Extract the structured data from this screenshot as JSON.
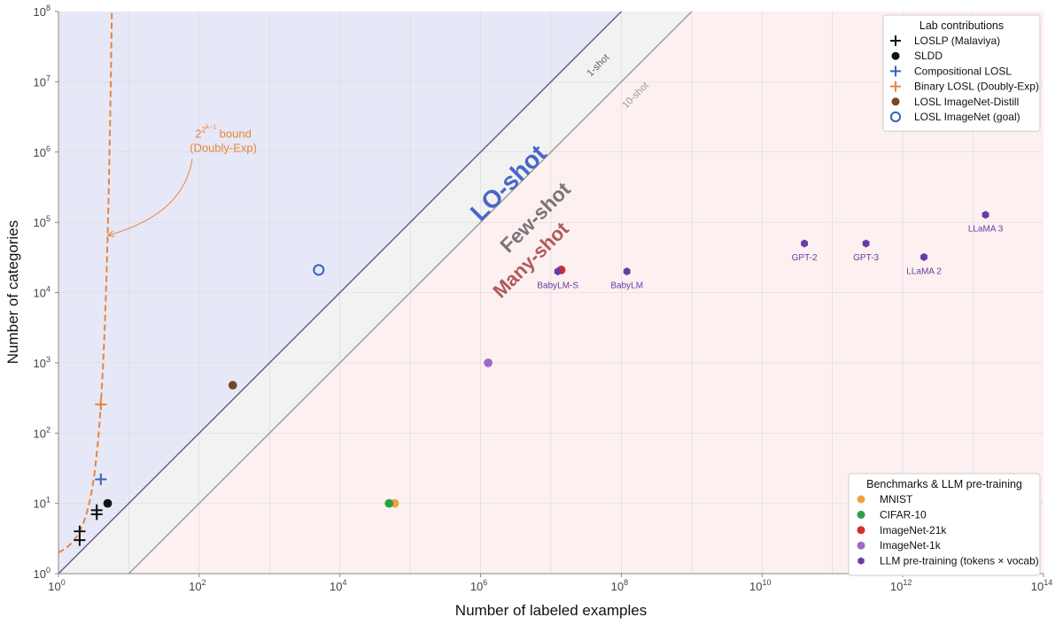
{
  "chart_data": {
    "type": "scatter",
    "xlabel": "Number of labeled examples",
    "ylabel": "Number of categories",
    "xscale": "log",
    "yscale": "log",
    "xlim": [
      1,
      100000000000000
    ],
    "ylim": [
      1,
      100000000
    ],
    "x_ticks": [
      {
        "value": 1,
        "base": "10",
        "exp": "0"
      },
      {
        "value": 100,
        "base": "10",
        "exp": "2"
      },
      {
        "value": 10000,
        "base": "10",
        "exp": "4"
      },
      {
        "value": 1000000,
        "base": "10",
        "exp": "6"
      },
      {
        "value": 100000000,
        "base": "10",
        "exp": "8"
      },
      {
        "value": 10000000000,
        "base": "10",
        "exp": "10"
      },
      {
        "value": 1000000000000,
        "base": "10",
        "exp": "12"
      },
      {
        "value": 100000000000000,
        "base": "10",
        "exp": "14"
      }
    ],
    "y_ticks": [
      {
        "value": 1,
        "base": "10",
        "exp": "0"
      },
      {
        "value": 10,
        "base": "10",
        "exp": "1"
      },
      {
        "value": 100,
        "base": "10",
        "exp": "2"
      },
      {
        "value": 1000,
        "base": "10",
        "exp": "3"
      },
      {
        "value": 10000,
        "base": "10",
        "exp": "4"
      },
      {
        "value": 100000,
        "base": "10",
        "exp": "5"
      },
      {
        "value": 1000000,
        "base": "10",
        "exp": "6"
      },
      {
        "value": 10000000,
        "base": "10",
        "exp": "7"
      },
      {
        "value": 100000000,
        "base": "10",
        "exp": "8"
      }
    ],
    "grid": true,
    "regions": [
      {
        "label": "LO-shot",
        "color": "#4a66c9",
        "fill": "#e6e8f7",
        "label_x": 3000000,
        "label_y": 300000
      },
      {
        "label": "Few-shot",
        "color": "#777777",
        "fill": "#f2f2f2",
        "label_x": 7000000,
        "label_y": 100000
      },
      {
        "label": "Many-shot",
        "color": "#b05a5a",
        "fill": "#fcf0f1",
        "label_x": 6000000,
        "label_y": 25000
      }
    ],
    "reference_lines": [
      {
        "label": "1-shot",
        "ratio": 1,
        "color": "#5a5f73",
        "label_x": 50000000,
        "label_y": 16000000
      },
      {
        "label": "10-shot",
        "ratio": 0.1,
        "color": "#999999",
        "label_x": 170000000,
        "label_y": 6000000
      }
    ],
    "bound_curve": {
      "label_base": "2",
      "label_exp": "2",
      "label_sup": "k−1",
      "label_line1": " bound",
      "label_line2": "(Doubly-Exp)",
      "color": "#e8843a",
      "label_x": 220,
      "label_y": 1200000,
      "arrow_to_x": 5,
      "arrow_to_y": 65000
    },
    "legends": [
      {
        "title": "Lab contributions",
        "position": "top-right",
        "entries": [
          {
            "label": "LOSLP (Malaviya)",
            "marker": "plus",
            "color": "#111111"
          },
          {
            "label": "SLDD",
            "marker": "circle",
            "color": "#111111"
          },
          {
            "label": "Compositional LOSL",
            "marker": "plus",
            "color": "#3b5fc0"
          },
          {
            "label": "Binary LOSL (Doubly-Exp)",
            "marker": "plus",
            "color": "#e8843a"
          },
          {
            "label": "LOSL ImageNet-Distill",
            "marker": "circle",
            "color": "#7a4520"
          },
          {
            "label": "LOSL ImageNet (goal)",
            "marker": "open-circle",
            "color": "#3b5fc0"
          }
        ]
      },
      {
        "title": "Benchmarks & LLM pre-training",
        "position": "bottom-right",
        "entries": [
          {
            "label": "MNIST",
            "marker": "circle",
            "color": "#f5a03a"
          },
          {
            "label": "CIFAR-10",
            "marker": "circle",
            "color": "#2ea043"
          },
          {
            "label": "ImageNet-21k",
            "marker": "circle",
            "color": "#d62e2e"
          },
          {
            "label": "ImageNet-1k",
            "marker": "circle",
            "color": "#9b6cc7"
          },
          {
            "label": "LLM pre-training (tokens × vocab)",
            "marker": "hexagon",
            "color": "#6a3aa8"
          }
        ]
      }
    ],
    "series": [
      {
        "legend": "LOSLP (Malaviya)",
        "marker": "plus",
        "color": "#111111",
        "points": [
          {
            "x": 2,
            "y": 3
          },
          {
            "x": 2,
            "y": 4
          },
          {
            "x": 3.5,
            "y": 7
          },
          {
            "x": 3.5,
            "y": 8
          }
        ]
      },
      {
        "legend": "SLDD",
        "marker": "circle",
        "color": "#111111",
        "points": [
          {
            "x": 5,
            "y": 10
          }
        ]
      },
      {
        "legend": "Compositional LOSL",
        "marker": "plus",
        "color": "#3b5fc0",
        "points": [
          {
            "x": 4,
            "y": 22
          }
        ]
      },
      {
        "legend": "Binary LOSL (Doubly-Exp)",
        "marker": "plus",
        "color": "#e8843a",
        "points": [
          {
            "x": 4,
            "y": 256
          }
        ]
      },
      {
        "legend": "LOSL ImageNet-Distill",
        "marker": "circle",
        "color": "#7a4520",
        "points": [
          {
            "x": 300,
            "y": 480
          }
        ]
      },
      {
        "legend": "LOSL ImageNet (goal)",
        "marker": "open-circle",
        "color": "#3b5fc0",
        "points": [
          {
            "x": 5000,
            "y": 21000
          }
        ]
      },
      {
        "legend": "MNIST",
        "marker": "circle",
        "color": "#f5a03a",
        "points": [
          {
            "x": 60000,
            "y": 10
          }
        ]
      },
      {
        "legend": "CIFAR-10",
        "marker": "circle",
        "color": "#2ea043",
        "points": [
          {
            "x": 50000,
            "y": 10
          }
        ]
      },
      {
        "legend": "ImageNet-21k",
        "marker": "circle",
        "color": "#d62e2e",
        "points": [
          {
            "x": 14000000,
            "y": 21000
          }
        ]
      },
      {
        "legend": "ImageNet-1k",
        "marker": "circle",
        "color": "#9b6cc7",
        "points": [
          {
            "x": 1280000,
            "y": 1000
          }
        ]
      },
      {
        "legend": "LLM pre-training (tokens × vocab)",
        "marker": "hexagon",
        "color": "#6a3aa8",
        "points": [
          {
            "x": 12500000,
            "y": 20000,
            "label": "BabyLM-S"
          },
          {
            "x": 120000000,
            "y": 20000,
            "label": "BabyLM"
          },
          {
            "x": 40000000000,
            "y": 50000,
            "label": "GPT-2"
          },
          {
            "x": 300000000000,
            "y": 50000,
            "label": "GPT-3"
          },
          {
            "x": 2000000000000,
            "y": 32000,
            "label": "LLaMA 2"
          },
          {
            "x": 15000000000000,
            "y": 128000,
            "label": "LLaMA 3"
          }
        ]
      }
    ]
  }
}
